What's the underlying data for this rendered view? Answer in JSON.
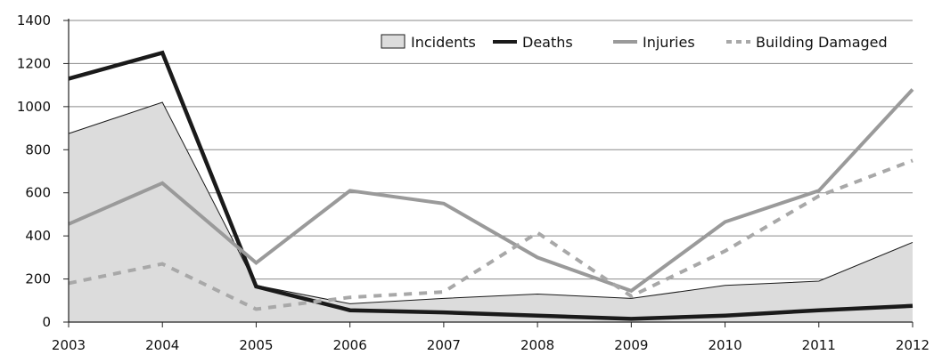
{
  "chart_data": {
    "type": "line",
    "x": [
      "2003",
      "2004",
      "2005",
      "2006",
      "2007",
      "2008",
      "2009",
      "2010",
      "2011",
      "2012"
    ],
    "ylim": [
      0,
      1400
    ],
    "yticks": [
      "0",
      "200",
      "400",
      "600",
      "800",
      "1000",
      "1200",
      "1400"
    ],
    "grid": "horizontal",
    "legend_position": "top-right",
    "series": [
      {
        "name": "Incidents",
        "style": "area",
        "fill": "#dcdcdc",
        "stroke": "#1a1a1a",
        "values": [
          875,
          1020,
          170,
          85,
          110,
          130,
          110,
          170,
          190,
          370
        ]
      },
      {
        "name": "Deaths",
        "style": "line",
        "color": "#1a1a1a",
        "dash": "solid",
        "values": [
          1130,
          1250,
          165,
          55,
          45,
          30,
          15,
          30,
          55,
          75
        ]
      },
      {
        "name": "Injuries",
        "style": "line",
        "color": "#9a9a9a",
        "dash": "solid",
        "values": [
          455,
          645,
          275,
          610,
          550,
          300,
          145,
          465,
          610,
          1080
        ]
      },
      {
        "name": "Building Damaged",
        "style": "line",
        "color": "#a8a8a8",
        "dash": "dotted",
        "values": [
          180,
          270,
          60,
          115,
          140,
          415,
          120,
          330,
          585,
          750
        ]
      }
    ]
  }
}
